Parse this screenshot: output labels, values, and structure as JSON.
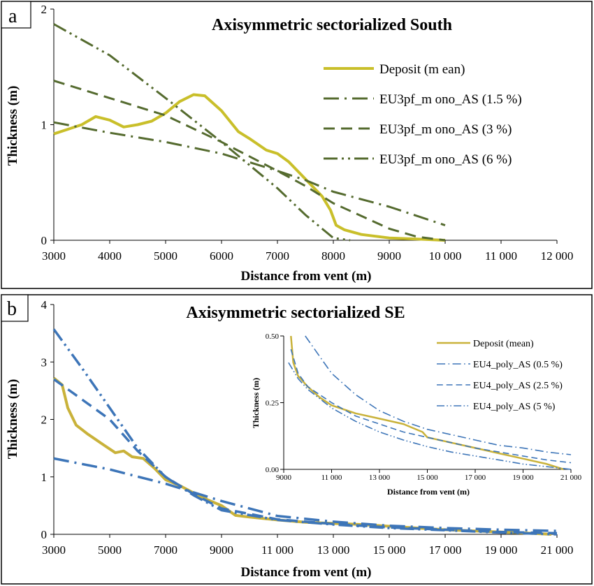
{
  "chart_data": [
    {
      "panel": "a",
      "type": "line",
      "title": "Axisymmetric sectorialized South",
      "xlabel": "Distance from vent (m)",
      "ylabel": "Thickness (m)",
      "xlim": [
        3000,
        12000
      ],
      "ylim": [
        0,
        2
      ],
      "xticks": [
        "3000",
        "4000",
        "5000",
        "6000",
        "7000",
        "8000",
        "9000",
        "10 000",
        "11 000",
        "12 000"
      ],
      "yticks": [
        "0",
        "1",
        "2"
      ],
      "legend_position": "top-right",
      "series": [
        {
          "name": "Deposit (m ean)",
          "color": "#c9bf2a",
          "style": "solid",
          "points": [
            [
              3000,
              0.92
            ],
            [
              3250,
              0.96
            ],
            [
              3500,
              1.0
            ],
            [
              3750,
              1.07
            ],
            [
              4000,
              1.04
            ],
            [
              4250,
              0.98
            ],
            [
              4500,
              1.0
            ],
            [
              4750,
              1.03
            ],
            [
              5000,
              1.1
            ],
            [
              5250,
              1.2
            ],
            [
              5500,
              1.26
            ],
            [
              5700,
              1.25
            ],
            [
              6000,
              1.12
            ],
            [
              6300,
              0.94
            ],
            [
              6500,
              0.88
            ],
            [
              6800,
              0.78
            ],
            [
              7000,
              0.75
            ],
            [
              7200,
              0.68
            ],
            [
              7400,
              0.58
            ],
            [
              7600,
              0.48
            ],
            [
              7800,
              0.38
            ],
            [
              7950,
              0.26
            ],
            [
              8050,
              0.13
            ],
            [
              8200,
              0.09
            ],
            [
              8500,
              0.05
            ],
            [
              9000,
              0.02
            ],
            [
              9500,
              0.01
            ],
            [
              10000,
              0.0
            ]
          ]
        },
        {
          "name": "EU3pf_m ono_AS (1.5 %)",
          "color": "#556b2f",
          "style": "dashdot",
          "points": [
            [
              3000,
              1.02
            ],
            [
              4000,
              0.93
            ],
            [
              5000,
              0.85
            ],
            [
              6000,
              0.75
            ],
            [
              7000,
              0.6
            ],
            [
              7500,
              0.52
            ],
            [
              8000,
              0.42
            ],
            [
              9000,
              0.29
            ],
            [
              10000,
              0.13
            ]
          ]
        },
        {
          "name": "EU3pf_m ono_AS (3 %)",
          "color": "#556b2f",
          "style": "dashed",
          "points": [
            [
              3000,
              1.38
            ],
            [
              4000,
              1.23
            ],
            [
              5000,
              1.08
            ],
            [
              6000,
              0.85
            ],
            [
              7000,
              0.6
            ],
            [
              7500,
              0.47
            ],
            [
              8000,
              0.32
            ],
            [
              9000,
              0.1
            ],
            [
              9500,
              0.03
            ],
            [
              10000,
              0.0
            ]
          ]
        },
        {
          "name": "EU3pf_m ono_AS (6 %)",
          "color": "#556b2f",
          "style": "dashdotdot",
          "points": [
            [
              3000,
              1.87
            ],
            [
              4000,
              1.6
            ],
            [
              5000,
              1.23
            ],
            [
              6000,
              0.85
            ],
            [
              7000,
              0.45
            ],
            [
              7500,
              0.22
            ],
            [
              8000,
              0.02
            ],
            [
              8300,
              0.0
            ]
          ]
        }
      ]
    },
    {
      "panel": "b",
      "type": "line",
      "title": "Axisymmetric sectorialized SE",
      "xlabel": "Distance from vent (m)",
      "ylabel": "Thickness (m)",
      "xlim": [
        3000,
        21000
      ],
      "ylim": [
        0,
        4
      ],
      "xticks": [
        "3000",
        "5000",
        "7000",
        "9000",
        "11 000",
        "13 000",
        "15 000",
        "17 000",
        "19 000",
        "21 000"
      ],
      "yticks": [
        "0",
        "1",
        "2",
        "3",
        "4"
      ],
      "series": [
        {
          "name": "Deposit (mean)",
          "color": "#c9b23a",
          "style": "solid",
          "points": [
            [
              3000,
              2.72
            ],
            [
              3300,
              2.6
            ],
            [
              3500,
              2.2
            ],
            [
              3800,
              1.9
            ],
            [
              4200,
              1.75
            ],
            [
              4800,
              1.55
            ],
            [
              5200,
              1.42
            ],
            [
              5500,
              1.45
            ],
            [
              5800,
              1.35
            ],
            [
              6200,
              1.32
            ],
            [
              6600,
              1.15
            ],
            [
              7000,
              0.95
            ],
            [
              7500,
              0.85
            ],
            [
              8000,
              0.72
            ],
            [
              8500,
              0.6
            ],
            [
              9000,
              0.5
            ],
            [
              9500,
              0.33
            ],
            [
              10000,
              0.3
            ],
            [
              11000,
              0.25
            ],
            [
              12000,
              0.21
            ],
            [
              13000,
              0.19
            ],
            [
              14000,
              0.17
            ],
            [
              15000,
              0.14
            ],
            [
              16000,
              0.11
            ],
            [
              17000,
              0.08
            ],
            [
              18000,
              0.06
            ],
            [
              19000,
              0.04
            ],
            [
              20000,
              0.02
            ],
            [
              20800,
              0.0
            ]
          ]
        },
        {
          "name": "EU4_poly_AS (0.5 %)",
          "color": "#3d75b8",
          "style": "dashdot",
          "points": [
            [
              3000,
              1.32
            ],
            [
              5000,
              1.13
            ],
            [
              7000,
              0.88
            ],
            [
              9000,
              0.58
            ],
            [
              11000,
              0.32
            ],
            [
              13000,
              0.22
            ],
            [
              15000,
              0.15
            ],
            [
              17000,
              0.11
            ],
            [
              19000,
              0.08
            ],
            [
              21000,
              0.06
            ]
          ]
        },
        {
          "name": "EU4_poly_AS (2.5 %)",
          "color": "#3d75b8",
          "style": "dashed",
          "points": [
            [
              3000,
              2.7
            ],
            [
              5000,
              2.0
            ],
            [
              6000,
              1.45
            ],
            [
              7000,
              1.0
            ],
            [
              8000,
              0.7
            ],
            [
              9000,
              0.45
            ],
            [
              11000,
              0.26
            ],
            [
              13000,
              0.18
            ],
            [
              15000,
              0.12
            ],
            [
              17000,
              0.08
            ],
            [
              19000,
              0.04
            ],
            [
              21000,
              0.02
            ]
          ]
        },
        {
          "name": "EU4_poly_AS (5 %)",
          "color": "#3d75b8",
          "style": "dashdotdot",
          "points": [
            [
              3000,
              3.57
            ],
            [
              4000,
              2.9
            ],
            [
              5000,
              2.2
            ],
            [
              6000,
              1.5
            ],
            [
              7000,
              1.0
            ],
            [
              8000,
              0.68
            ],
            [
              9000,
              0.42
            ],
            [
              11000,
              0.25
            ],
            [
              13000,
              0.17
            ],
            [
              15000,
              0.11
            ],
            [
              17000,
              0.07
            ],
            [
              19000,
              0.03
            ],
            [
              21000,
              0.0
            ]
          ]
        }
      ],
      "inset": {
        "xlabel": "Distance from vent (m)",
        "ylabel": "Thickness (m)",
        "xlim": [
          9000,
          21000
        ],
        "ylim": [
          0,
          0.5
        ],
        "xticks": [
          "9000",
          "11 000",
          "13 000",
          "15 000",
          "17 000",
          "19 000",
          "21 000"
        ],
        "yticks": [
          "0.00",
          "0.25",
          "0.50"
        ],
        "legend_position": "top-right",
        "series": [
          {
            "name": "Deposit (mean)",
            "color": "#c9b23a",
            "style": "solid",
            "points": [
              [
                9300,
                0.5
              ],
              [
                9400,
                0.4
              ],
              [
                9600,
                0.35
              ],
              [
                10000,
                0.31
              ],
              [
                10500,
                0.27
              ],
              [
                11000,
                0.24
              ],
              [
                12000,
                0.21
              ],
              [
                13000,
                0.19
              ],
              [
                14000,
                0.17
              ],
              [
                14800,
                0.14
              ],
              [
                15000,
                0.12
              ],
              [
                16000,
                0.1
              ],
              [
                17000,
                0.08
              ],
              [
                18000,
                0.06
              ],
              [
                19000,
                0.04
              ],
              [
                20000,
                0.02
              ],
              [
                20700,
                0.0
              ]
            ]
          },
          {
            "name": "EU4_poly_AS (0.5 %)",
            "color": "#3d75b8",
            "style": "dashdot",
            "points": [
              [
                9900,
                0.5
              ],
              [
                11000,
                0.36
              ],
              [
                12000,
                0.28
              ],
              [
                13000,
                0.22
              ],
              [
                14000,
                0.18
              ],
              [
                15000,
                0.15
              ],
              [
                16000,
                0.13
              ],
              [
                17000,
                0.11
              ],
              [
                18000,
                0.09
              ],
              [
                19000,
                0.08
              ],
              [
                20000,
                0.065
              ],
              [
                21000,
                0.055
              ]
            ]
          },
          {
            "name": "EU4_poly_AS (2.5 %)",
            "color": "#3d75b8",
            "style": "dashed",
            "points": [
              [
                9300,
                0.45
              ],
              [
                9600,
                0.36
              ],
              [
                10000,
                0.31
              ],
              [
                11000,
                0.25
              ],
              [
                12000,
                0.2
              ],
              [
                13000,
                0.17
              ],
              [
                14000,
                0.14
              ],
              [
                15000,
                0.12
              ],
              [
                16000,
                0.1
              ],
              [
                17000,
                0.08
              ],
              [
                18000,
                0.065
              ],
              [
                19000,
                0.05
              ],
              [
                20000,
                0.035
              ],
              [
                21000,
                0.025
              ]
            ]
          },
          {
            "name": "EU4_poly_AS (5 %)",
            "color": "#3d75b8",
            "style": "dashdotdot",
            "points": [
              [
                9200,
                0.4
              ],
              [
                9600,
                0.34
              ],
              [
                10000,
                0.3
              ],
              [
                11000,
                0.23
              ],
              [
                12000,
                0.18
              ],
              [
                13000,
                0.14
              ],
              [
                14000,
                0.11
              ],
              [
                15000,
                0.085
              ],
              [
                16000,
                0.065
              ],
              [
                17000,
                0.05
              ],
              [
                18000,
                0.035
              ],
              [
                19000,
                0.02
              ],
              [
                20000,
                0.01
              ],
              [
                21000,
                0.0
              ]
            ]
          }
        ]
      }
    }
  ]
}
